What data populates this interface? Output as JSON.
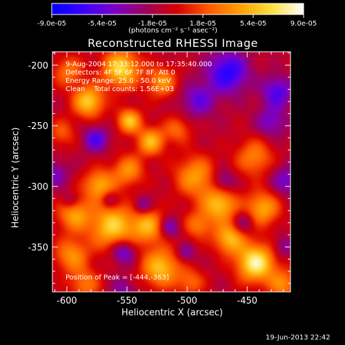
{
  "chart_data": {
    "type": "heatmap",
    "title": "Reconstructed RHESSI Image",
    "xlabel": "Heliocentric X (arcsec)",
    "ylabel": "Heliocentric Y (arcsec)",
    "xlim": [
      -612,
      -414
    ],
    "ylim": [
      -387,
      -189
    ],
    "x_ticks": [
      -600,
      -550,
      -500,
      -450
    ],
    "y_ticks": [
      -200,
      -250,
      -300,
      -350
    ],
    "x_tick_labels": [
      "-600",
      "-550",
      "-500",
      "-450"
    ],
    "y_tick_labels": [
      "-200",
      "-250",
      "-300",
      "-350"
    ],
    "colorbar": {
      "range": [
        -9e-05,
        9e-05
      ],
      "tick_labels": [
        "-9.0e-05",
        "-5.4e-05",
        "-1.8e-05",
        "1.8e-05",
        "5.4e-05",
        "9.0e-05"
      ],
      "unit_label": "(photons cm⁻² s⁻¹ asec⁻²)",
      "colormap": [
        "#0000ff",
        "#3c00ff",
        "#7a00c8",
        "#a0005a",
        "#d80000",
        "#ff5a00",
        "#ffa000",
        "#ffe040",
        "#ffffff"
      ]
    },
    "annotations": {
      "time": "9-Aug-2004 17:33:12.000 to 17:35:40.000",
      "detectors": "Detectors: 4F 5F 6F 7F 8F, Att 0",
      "energy": "Energy Range: 25.0 - 50.0 keV",
      "method": "Clean    Total counts: 1.56E+03",
      "peak": "Position of Peak = [-444,-363]"
    },
    "peak": [
      -444,
      -363
    ],
    "blobs": [
      [
        -443,
        -363,
        11,
        1.0
      ],
      [
        -465,
        -343,
        9,
        0.7
      ],
      [
        -473,
        -315,
        10,
        0.75
      ],
      [
        -437,
        -318,
        10,
        0.65
      ],
      [
        -493,
        -292,
        12,
        0.6
      ],
      [
        -444,
        -276,
        11,
        0.5
      ],
      [
        -522,
        -367,
        11,
        0.75
      ],
      [
        -532,
        -333,
        10,
        0.65
      ],
      [
        -562,
        -333,
        13,
        0.8
      ],
      [
        -596,
        -357,
        10,
        0.55
      ],
      [
        -594,
        -323,
        10,
        0.6
      ],
      [
        -573,
        -299,
        9,
        0.65
      ],
      [
        -549,
        -287,
        9,
        0.55
      ],
      [
        -530,
        -263,
        8,
        0.7
      ],
      [
        -548,
        -246,
        7,
        0.75
      ],
      [
        -582,
        -230,
        9,
        0.8
      ],
      [
        -555,
        -203,
        11,
        0.85
      ],
      [
        -521,
        -214,
        9,
        0.55
      ],
      [
        -599,
        -205,
        9,
        0.45
      ],
      [
        -604,
        -256,
        8,
        0.35
      ],
      [
        -508,
        -253,
        8,
        0.4
      ],
      [
        -491,
        -332,
        8,
        0.45
      ],
      [
        -585,
        -381,
        9,
        0.45
      ],
      [
        -497,
        -379,
        8,
        0.4
      ],
      [
        -420,
        -381,
        9,
        0.5
      ],
      [
        -466,
        -206,
        12,
        -0.7
      ],
      [
        -425,
        -222,
        9,
        -0.55
      ],
      [
        -491,
        -229,
        10,
        -0.45
      ],
      [
        -430,
        -247,
        9,
        -0.4
      ],
      [
        -576,
        -261,
        7,
        -0.55
      ],
      [
        -610,
        -290,
        8,
        -0.35
      ],
      [
        -565,
        -311,
        5,
        -0.35
      ],
      [
        -537,
        -316,
        5,
        -0.4
      ],
      [
        -515,
        -334,
        6,
        -0.45
      ],
      [
        -553,
        -354,
        7,
        -0.55
      ],
      [
        -470,
        -296,
        7,
        -0.4
      ],
      [
        -453,
        -330,
        6,
        -0.35
      ],
      [
        -501,
        -355,
        5,
        -0.35
      ],
      [
        -418,
        -295,
        9,
        -0.4
      ],
      [
        -598,
        -312,
        5,
        -0.3
      ],
      [
        -553,
        -385,
        7,
        -0.3
      ],
      [
        -420,
        -350,
        6,
        -0.3
      ]
    ]
  },
  "footer": {
    "timestamp": "19-Jun-2013 22:42"
  }
}
